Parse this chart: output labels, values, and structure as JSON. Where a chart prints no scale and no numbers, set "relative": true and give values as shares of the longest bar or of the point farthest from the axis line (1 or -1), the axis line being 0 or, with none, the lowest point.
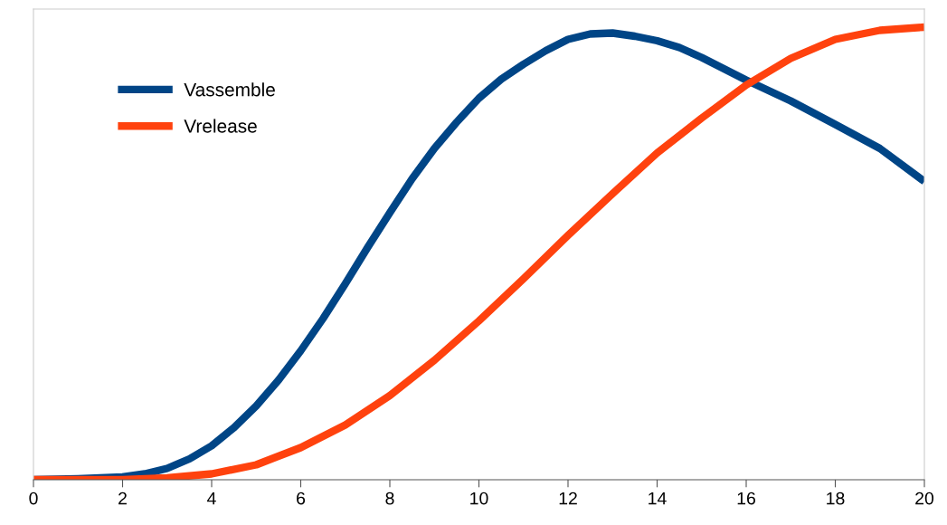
{
  "chart_data": {
    "type": "line",
    "relative": true,
    "xlim": [
      0,
      20
    ],
    "xticks": [
      0,
      2,
      4,
      6,
      8,
      10,
      12,
      14,
      16,
      18,
      20
    ],
    "tick_labels": "x",
    "grid": false,
    "legend": "top left",
    "marker": "none",
    "line_style": "solid",
    "series": [
      {
        "name": "Vassemble",
        "color": "#004586",
        "x": [
          0,
          1,
          2,
          2.5,
          3,
          3.5,
          4,
          4.5,
          5,
          5.5,
          6,
          6.5,
          7,
          7.5,
          8,
          8.5,
          9,
          9.5,
          10,
          10.5,
          11,
          11.5,
          12,
          12.5,
          13,
          13.5,
          14,
          14.5,
          15,
          15.5,
          16,
          17,
          18,
          19,
          20
        ],
        "values": [
          0,
          0.002,
          0.006,
          0.013,
          0.025,
          0.046,
          0.075,
          0.115,
          0.163,
          0.22,
          0.285,
          0.356,
          0.433,
          0.513,
          0.59,
          0.665,
          0.732,
          0.79,
          0.843,
          0.885,
          0.918,
          0.948,
          0.973,
          0.985,
          0.987,
          0.98,
          0.97,
          0.955,
          0.933,
          0.908,
          0.883,
          0.837,
          0.785,
          0.732,
          0.659
        ]
      },
      {
        "name": "Vrelease",
        "color": "#ff420e",
        "x": [
          0,
          2,
          3,
          4,
          5,
          6,
          7,
          8,
          9,
          10,
          11,
          12,
          13,
          14,
          15,
          16,
          17,
          18,
          19,
          20
        ],
        "values": [
          0,
          0,
          0.004,
          0.013,
          0.033,
          0.071,
          0.121,
          0.186,
          0.264,
          0.351,
          0.444,
          0.54,
          0.632,
          0.722,
          0.799,
          0.872,
          0.931,
          0.973,
          0.993,
          1
        ]
      }
    ]
  }
}
